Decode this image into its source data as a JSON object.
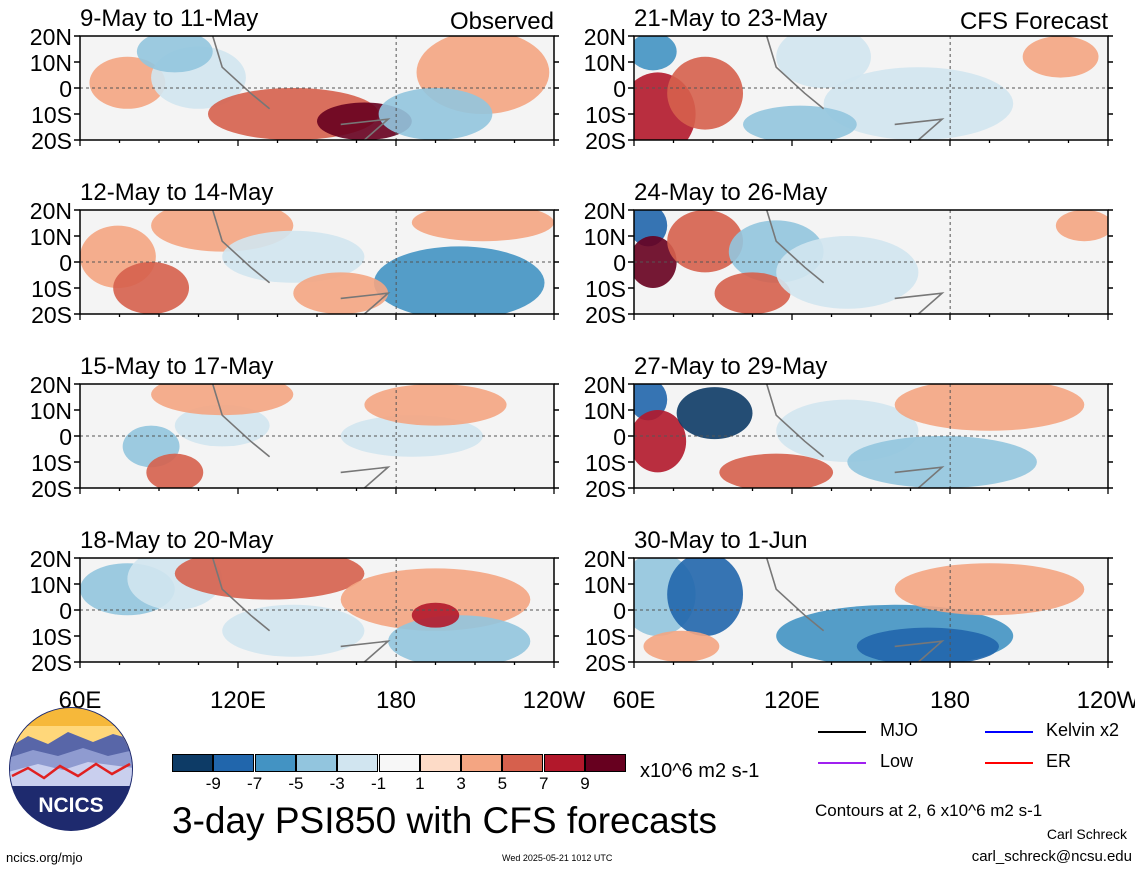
{
  "panels": [
    {
      "dates": "9-May to 11-May",
      "tag": "Observed"
    },
    {
      "dates": "21-May to 23-May",
      "tag": "CFS Forecast"
    },
    {
      "dates": "12-May to 14-May",
      "tag": ""
    },
    {
      "dates": "24-May to 26-May",
      "tag": ""
    },
    {
      "dates": "15-May to 17-May",
      "tag": ""
    },
    {
      "dates": "27-May to 29-May",
      "tag": ""
    },
    {
      "dates": "18-May to 20-May",
      "tag": ""
    },
    {
      "dates": "30-May to 1-Jun",
      "tag": ""
    }
  ],
  "lat_labels": [
    "20N",
    "10N",
    "0",
    "10S",
    "20S"
  ],
  "lon_labels": [
    "60E",
    "120E",
    "180",
    "120W"
  ],
  "legend": {
    "mjo": "MJO",
    "kelvin": "Kelvin x2",
    "low": "Low",
    "er": "ER",
    "colors": {
      "mjo": "#000000",
      "kelvin": "#0000ff",
      "low": "#a020f0",
      "er": "#ff0000"
    }
  },
  "colorbar": {
    "colors": [
      "#0d3b66",
      "#2166ac",
      "#4393c3",
      "#92c5de",
      "#d1e5f0",
      "#f7f7f7",
      "#fddbc7",
      "#f4a582",
      "#d6604d",
      "#b2182b",
      "#67001f"
    ],
    "labels": [
      "-9",
      "-7",
      "-5",
      "-3",
      "-1",
      "1",
      "3",
      "5",
      "7",
      "9"
    ],
    "units": "x10^6 m2 s-1"
  },
  "title": "3-day PSI850 with CFS forecasts",
  "contours_note": "Contours at 2, 6 x10^6 m2 s-1",
  "author": "Carl Schreck",
  "email": "carl_schreck@ncsu.edu",
  "site": "ncics.org/mjo",
  "timestamp": "Wed 2025-05-21 1012 UTC",
  "logo_text": "NCICS"
}
